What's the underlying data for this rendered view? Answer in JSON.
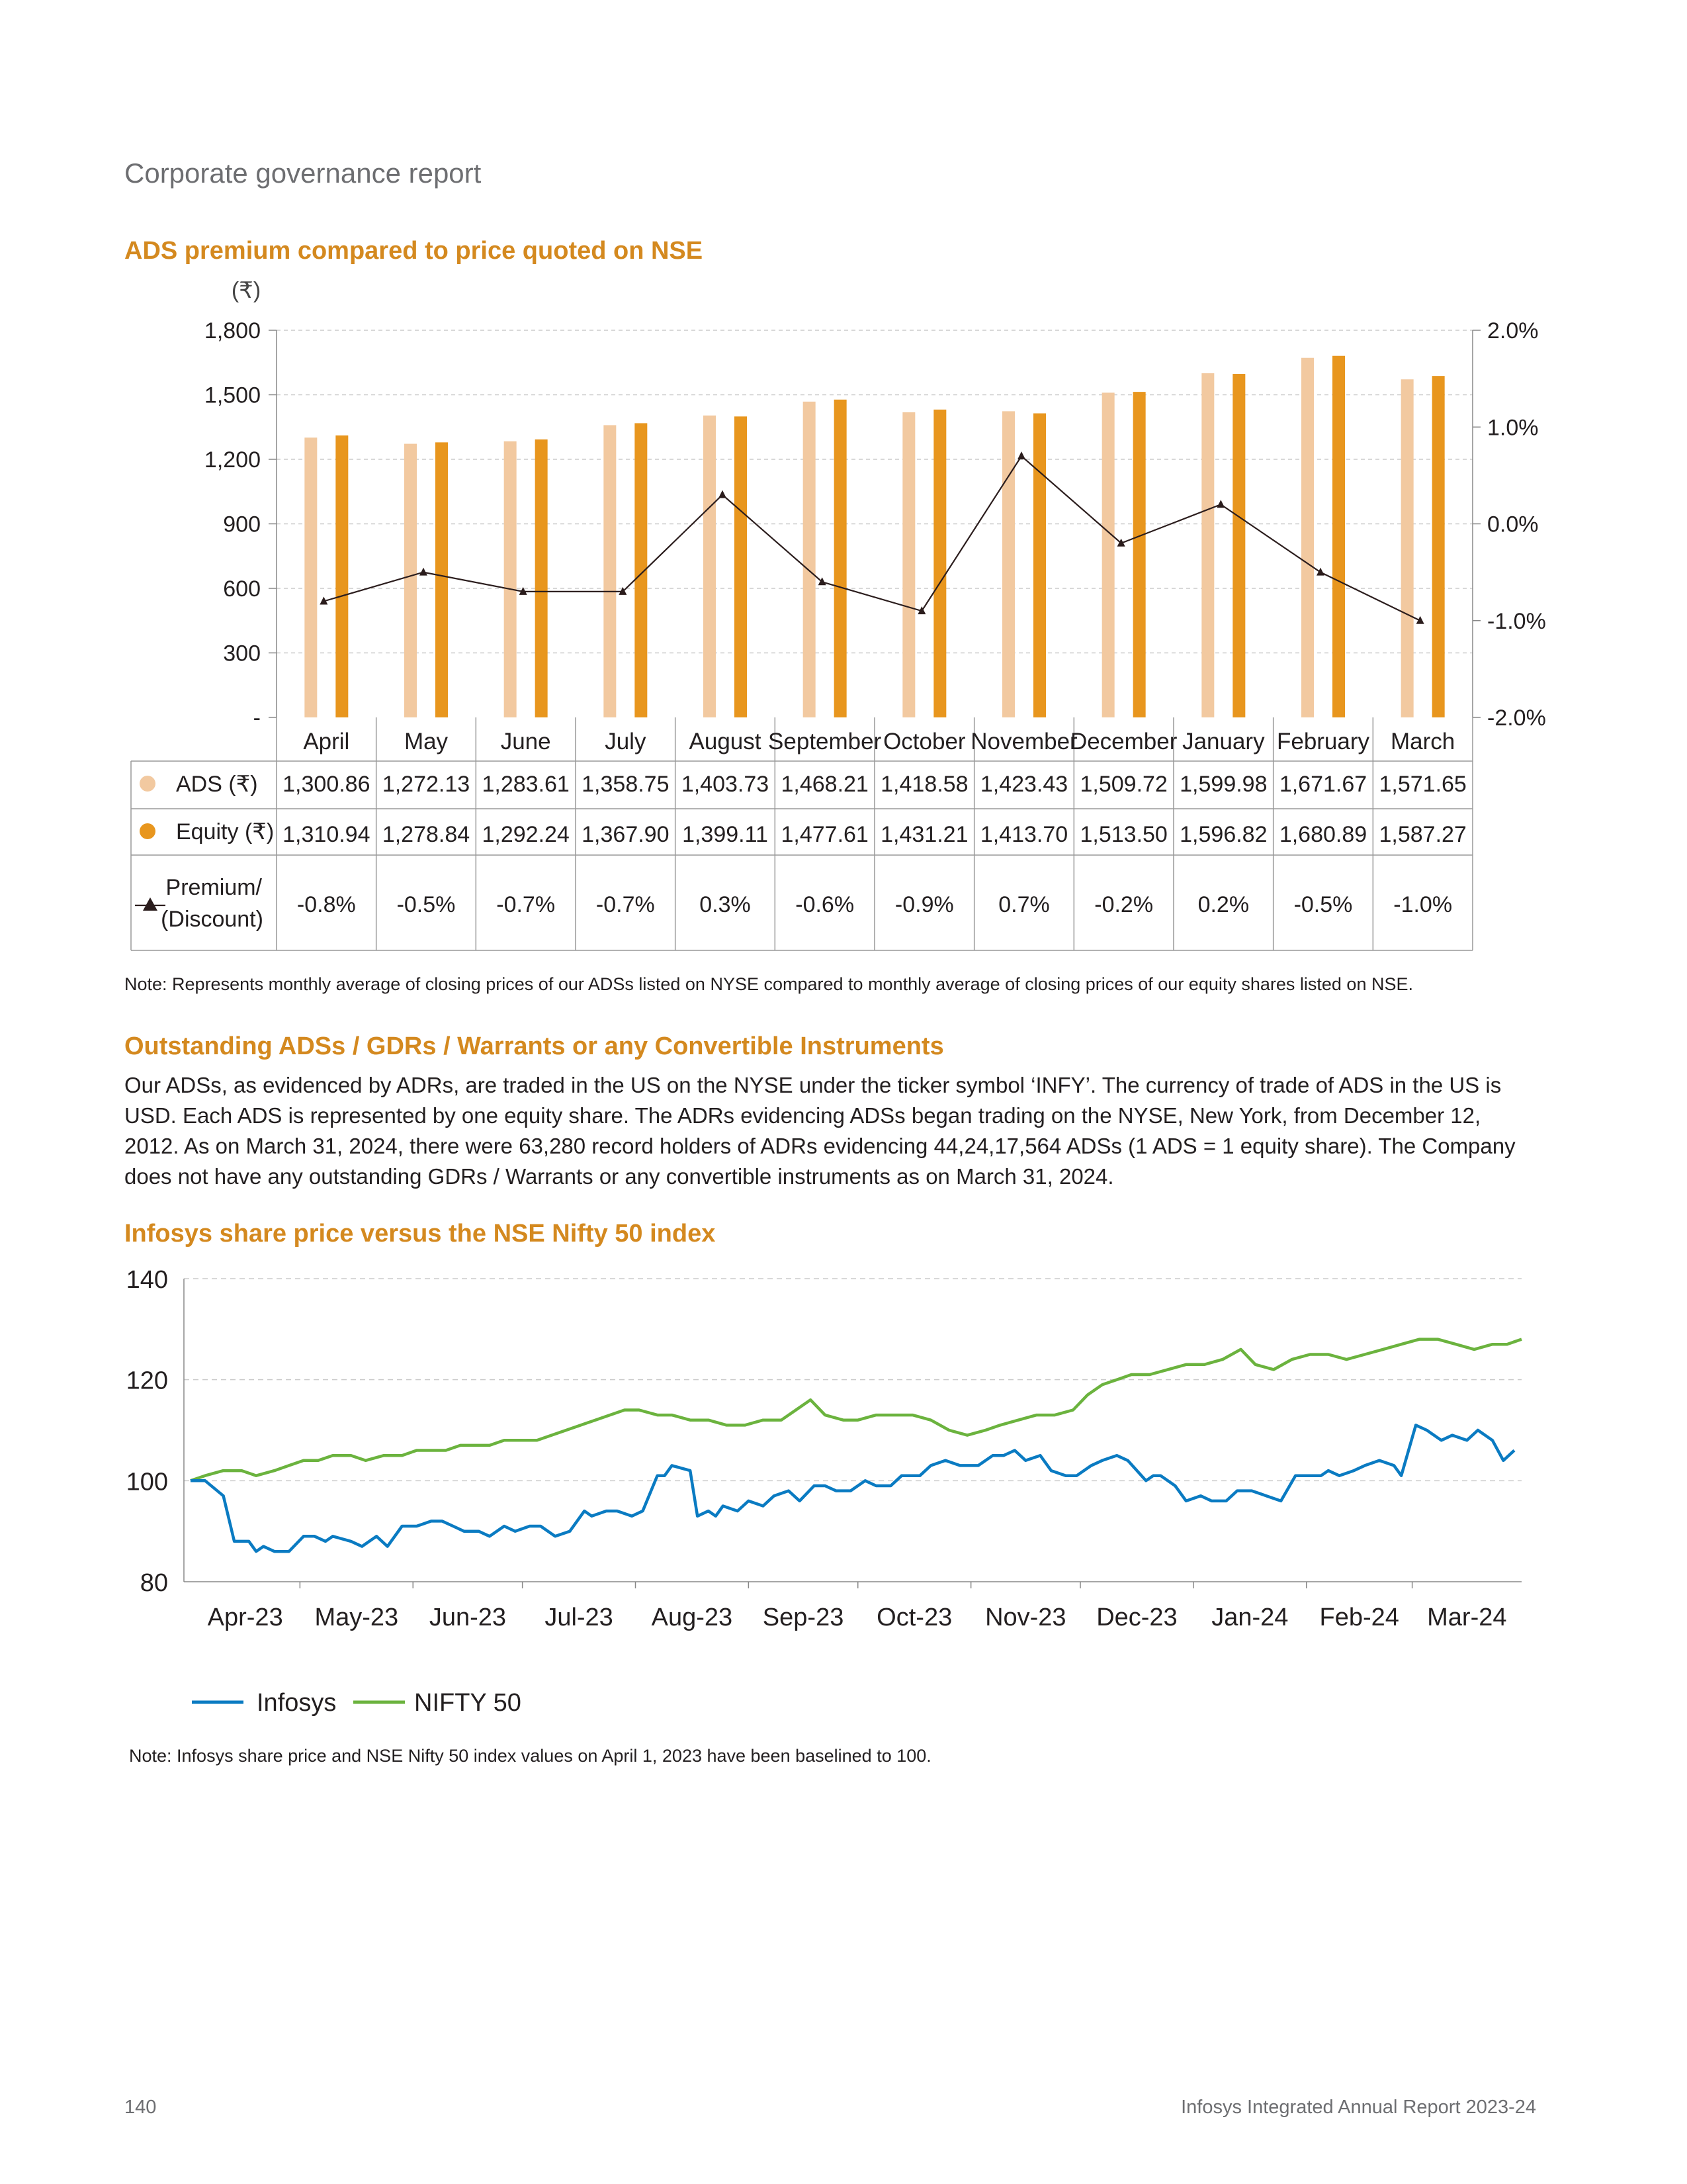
{
  "header": {
    "running_title": "Corporate governance report"
  },
  "chart1": {
    "title": "ADS premium compared to price quoted on NSE",
    "currency_label": "(₹)",
    "note": "Note: Represents monthly average of closing prices of our ADSs listed on NYSE compared to monthly average of closing prices of our equity shares listed on NSE."
  },
  "section2": {
    "title": "Outstanding ADSs / GDRs / Warrants or any Convertible Instruments",
    "body": "Our ADSs, as evidenced by ADRs, are traded in the US on the NYSE under the ticker symbol ‘INFY’. The currency of trade of ADS in the US is USD. Each ADS is represented by one equity share. The ADRs evidencing ADSs began trading on the NYSE, New York, from December 12, 2012. As on March 31, 2024, there were 63,280 record holders of ADRs evidencing 44,24,17,564 ADSs (1 ADS = 1 equity share). The Company does not have any outstanding GDRs / Warrants or any convertible instruments as on March 31, 2024."
  },
  "chart2": {
    "title": "Infosys share price versus the NSE Nifty 50 index",
    "note": "Note: Infosys share price and NSE Nifty 50 index values on April 1, 2023 have been baselined to 100."
  },
  "footer": {
    "page_number": "140",
    "report_name": "Infosys Integrated Annual Report 2023-24"
  },
  "colors": {
    "ads": "#f2c9a0",
    "equity": "#e8961e",
    "premium_line": "#2b1d1d",
    "infosys": "#0a7bc2",
    "nifty": "#6bb33e",
    "title": "#d4891f"
  },
  "chart_data": [
    {
      "type": "bar",
      "categories": [
        "April",
        "May",
        "June",
        "July",
        "August",
        "September",
        "October",
        "November",
        "December",
        "January",
        "February",
        "March"
      ],
      "series": [
        {
          "name": "ADS (₹)",
          "label": "ADS (₹)",
          "values": [
            1300.86,
            1272.13,
            1283.61,
            1358.75,
            1403.73,
            1468.21,
            1418.58,
            1423.43,
            1509.72,
            1599.98,
            1671.67,
            1571.65
          ],
          "labels": [
            "1,300.86",
            "1,272.13",
            "1,283.61",
            "1,358.75",
            "1,403.73",
            "1,468.21",
            "1,418.58",
            "1,423.43",
            "1,509.72",
            "1,599.98",
            "1,671.67",
            "1,571.65"
          ]
        },
        {
          "name": "Equity (₹)",
          "label": "Equity (₹)",
          "values": [
            1310.94,
            1278.84,
            1292.24,
            1367.9,
            1399.11,
            1477.61,
            1431.21,
            1413.7,
            1513.5,
            1596.82,
            1680.89,
            1587.27
          ],
          "labels": [
            "1,310.94",
            "1,278.84",
            "1,292.24",
            "1,367.90",
            "1,399.11",
            "1,477.61",
            "1,431.21",
            "1,413.70",
            "1,513.50",
            "1,596.82",
            "1,680.89",
            "1,587.27"
          ]
        },
        {
          "name": "Premium/ (Discount)",
          "label_lines": [
            "Premium/",
            "(Discount)"
          ],
          "type": "line",
          "axis": "right",
          "values": [
            -0.8,
            -0.5,
            -0.7,
            -0.7,
            0.3,
            -0.6,
            -0.9,
            0.7,
            -0.2,
            0.2,
            -0.5,
            -1.0
          ],
          "labels": [
            "-0.8%",
            "-0.5%",
            "-0.7%",
            "-0.7%",
            "0.3%",
            "-0.6%",
            "-0.9%",
            "0.7%",
            "-0.2%",
            "0.2%",
            "-0.5%",
            "-1.0%"
          ]
        }
      ],
      "y_left": {
        "ylim": [
          0,
          1800
        ],
        "ticks": [
          0,
          300,
          600,
          900,
          1200,
          1500,
          1800
        ],
        "tick_labels": [
          "-",
          "300",
          "600",
          "900",
          "1,200",
          "1,500",
          "1,800"
        ]
      },
      "y_right": {
        "ylim": [
          -2.0,
          2.0
        ],
        "ticks": [
          -2,
          -1,
          0,
          1,
          2
        ],
        "tick_labels": [
          "-2.0%",
          "-1.0%",
          "0.0%",
          "1.0%",
          "2.0%"
        ]
      },
      "grid": true,
      "legend": "table-below"
    },
    {
      "type": "line",
      "x_ticks": [
        "Apr-23",
        "May-23",
        "Jun-23",
        "Jul-23",
        "Aug-23",
        "Sep-23",
        "Oct-23",
        "Nov-23",
        "Dec-23",
        "Jan-24",
        "Feb-24",
        "Mar-24"
      ],
      "x_range": [
        "2023-04-01",
        "2024-03-31"
      ],
      "ylim": [
        80,
        140
      ],
      "y_ticks": [
        80,
        100,
        120,
        140
      ],
      "grid": true,
      "legend": "bottom-left",
      "series": [
        {
          "name": "Infosys",
          "points": [
            [
              "2023-04-01",
              100
            ],
            [
              "2023-04-05",
              100
            ],
            [
              "2023-04-10",
              97
            ],
            [
              "2023-04-13",
              88
            ],
            [
              "2023-04-17",
              88
            ],
            [
              "2023-04-19",
              86
            ],
            [
              "2023-04-21",
              87
            ],
            [
              "2023-04-24",
              86
            ],
            [
              "2023-04-28",
              86
            ],
            [
              "2023-05-02",
              89
            ],
            [
              "2023-05-05",
              89
            ],
            [
              "2023-05-08",
              88
            ],
            [
              "2023-05-10",
              89
            ],
            [
              "2023-05-15",
              88
            ],
            [
              "2023-05-18",
              87
            ],
            [
              "2023-05-22",
              89
            ],
            [
              "2023-05-25",
              87
            ],
            [
              "2023-05-29",
              91
            ],
            [
              "2023-06-02",
              91
            ],
            [
              "2023-06-06",
              92
            ],
            [
              "2023-06-09",
              92
            ],
            [
              "2023-06-12",
              91
            ],
            [
              "2023-06-15",
              90
            ],
            [
              "2023-06-19",
              90
            ],
            [
              "2023-06-22",
              89
            ],
            [
              "2023-06-26",
              91
            ],
            [
              "2023-06-29",
              90
            ],
            [
              "2023-07-03",
              91
            ],
            [
              "2023-07-06",
              91
            ],
            [
              "2023-07-10",
              89
            ],
            [
              "2023-07-14",
              90
            ],
            [
              "2023-07-18",
              94
            ],
            [
              "2023-07-20",
              93
            ],
            [
              "2023-07-24",
              94
            ],
            [
              "2023-07-27",
              94
            ],
            [
              "2023-07-31",
              93
            ],
            [
              "2023-08-03",
              94
            ],
            [
              "2023-08-07",
              101
            ],
            [
              "2023-08-09",
              101
            ],
            [
              "2023-08-11",
              103
            ],
            [
              "2023-08-16",
              102
            ],
            [
              "2023-08-18",
              93
            ],
            [
              "2023-08-21",
              94
            ],
            [
              "2023-08-23",
              93
            ],
            [
              "2023-08-25",
              95
            ],
            [
              "2023-08-29",
              94
            ],
            [
              "2023-09-01",
              96
            ],
            [
              "2023-09-05",
              95
            ],
            [
              "2023-09-08",
              97
            ],
            [
              "2023-09-12",
              98
            ],
            [
              "2023-09-15",
              96
            ],
            [
              "2023-09-19",
              99
            ],
            [
              "2023-09-22",
              99
            ],
            [
              "2023-09-25",
              98
            ],
            [
              "2023-09-29",
              98
            ],
            [
              "2023-10-03",
              100
            ],
            [
              "2023-10-06",
              99
            ],
            [
              "2023-10-10",
              99
            ],
            [
              "2023-10-13",
              101
            ],
            [
              "2023-10-18",
              101
            ],
            [
              "2023-10-21",
              103
            ],
            [
              "2023-10-25",
              104
            ],
            [
              "2023-10-29",
              103
            ],
            [
              "2023-11-01",
              103
            ],
            [
              "2023-11-03",
              103
            ],
            [
              "2023-11-07",
              105
            ],
            [
              "2023-11-10",
              105
            ],
            [
              "2023-11-13",
              106
            ],
            [
              "2023-11-16",
              104
            ],
            [
              "2023-11-20",
              105
            ],
            [
              "2023-11-23",
              102
            ],
            [
              "2023-11-27",
              101
            ],
            [
              "2023-11-30",
              101
            ],
            [
              "2023-12-04",
              103
            ],
            [
              "2023-12-07",
              104
            ],
            [
              "2023-12-11",
              105
            ],
            [
              "2023-12-14",
              104
            ],
            [
              "2023-12-19",
              100
            ],
            [
              "2023-12-21",
              101
            ],
            [
              "2023-12-23",
              101
            ],
            [
              "2023-12-27",
              99
            ],
            [
              "2023-12-30",
              96
            ],
            [
              "2024-01-03",
              97
            ],
            [
              "2024-01-06",
              96
            ],
            [
              "2024-01-10",
              96
            ],
            [
              "2024-01-13",
              98
            ],
            [
              "2024-01-17",
              98
            ],
            [
              "2024-01-21",
              97
            ],
            [
              "2024-01-25",
              96
            ],
            [
              "2024-01-29",
              101
            ],
            [
              "2024-02-01",
              101
            ],
            [
              "2024-02-05",
              101
            ],
            [
              "2024-02-07",
              102
            ],
            [
              "2024-02-10",
              101
            ],
            [
              "2024-02-14",
              102
            ],
            [
              "2024-02-17",
              103
            ],
            [
              "2024-02-21",
              104
            ],
            [
              "2024-02-25",
              103
            ],
            [
              "2024-02-27",
              101
            ],
            [
              "2024-03-02",
              111
            ],
            [
              "2024-03-05",
              110
            ],
            [
              "2024-03-09",
              108
            ],
            [
              "2024-03-12",
              109
            ],
            [
              "2024-03-16",
              108
            ],
            [
              "2024-03-19",
              110
            ],
            [
              "2024-03-23",
              108
            ],
            [
              "2024-03-26",
              104
            ],
            [
              "2024-03-29",
              106
            ]
          ]
        },
        {
          "name": "NIFTY 50",
          "points": [
            [
              "2023-04-01",
              100
            ],
            [
              "2023-04-05",
              101
            ],
            [
              "2023-04-10",
              102
            ],
            [
              "2023-04-15",
              102
            ],
            [
              "2023-04-19",
              101
            ],
            [
              "2023-04-24",
              102
            ],
            [
              "2023-04-28",
              103
            ],
            [
              "2023-05-02",
              104
            ],
            [
              "2023-05-06",
              104
            ],
            [
              "2023-05-10",
              105
            ],
            [
              "2023-05-15",
              105
            ],
            [
              "2023-05-19",
              104
            ],
            [
              "2023-05-24",
              105
            ],
            [
              "2023-05-29",
              105
            ],
            [
              "2023-06-02",
              106
            ],
            [
              "2023-06-06",
              106
            ],
            [
              "2023-06-10",
              106
            ],
            [
              "2023-06-14",
              107
            ],
            [
              "2023-06-18",
              107
            ],
            [
              "2023-06-22",
              107
            ],
            [
              "2023-06-26",
              108
            ],
            [
              "2023-07-01",
              108
            ],
            [
              "2023-07-05",
              108
            ],
            [
              "2023-07-09",
              109
            ],
            [
              "2023-07-13",
              110
            ],
            [
              "2023-07-17",
              111
            ],
            [
              "2023-07-21",
              112
            ],
            [
              "2023-07-25",
              113
            ],
            [
              "2023-07-29",
              114
            ],
            [
              "2023-08-02",
              114
            ],
            [
              "2023-08-07",
              113
            ],
            [
              "2023-08-11",
              113
            ],
            [
              "2023-08-16",
              112
            ],
            [
              "2023-08-21",
              112
            ],
            [
              "2023-08-26",
              111
            ],
            [
              "2023-08-31",
              111
            ],
            [
              "2023-09-05",
              112
            ],
            [
              "2023-09-10",
              112
            ],
            [
              "2023-09-14",
              114
            ],
            [
              "2023-09-18",
              116
            ],
            [
              "2023-09-22",
              113
            ],
            [
              "2023-09-27",
              112
            ],
            [
              "2023-10-01",
              112
            ],
            [
              "2023-10-06",
              113
            ],
            [
              "2023-10-11",
              113
            ],
            [
              "2023-10-16",
              113
            ],
            [
              "2023-10-21",
              112
            ],
            [
              "2023-10-26",
              110
            ],
            [
              "2023-10-31",
              109
            ],
            [
              "2023-11-05",
              110
            ],
            [
              "2023-11-09",
              111
            ],
            [
              "2023-11-14",
              112
            ],
            [
              "2023-11-19",
              113
            ],
            [
              "2023-11-24",
              113
            ],
            [
              "2023-11-29",
              114
            ],
            [
              "2023-12-03",
              117
            ],
            [
              "2023-12-07",
              119
            ],
            [
              "2023-12-11",
              120
            ],
            [
              "2023-12-15",
              121
            ],
            [
              "2023-12-20",
              121
            ],
            [
              "2023-12-25",
              122
            ],
            [
              "2023-12-30",
              123
            ],
            [
              "2024-01-04",
              123
            ],
            [
              "2024-01-09",
              124
            ],
            [
              "2024-01-14",
              126
            ],
            [
              "2024-01-18",
              123
            ],
            [
              "2024-01-23",
              122
            ],
            [
              "2024-01-28",
              124
            ],
            [
              "2024-02-02",
              125
            ],
            [
              "2024-02-07",
              125
            ],
            [
              "2024-02-12",
              124
            ],
            [
              "2024-02-17",
              125
            ],
            [
              "2024-02-22",
              126
            ],
            [
              "2024-02-27",
              127
            ],
            [
              "2024-03-03",
              128
            ],
            [
              "2024-03-08",
              128
            ],
            [
              "2024-03-13",
              127
            ],
            [
              "2024-03-18",
              126
            ],
            [
              "2024-03-23",
              127
            ],
            [
              "2024-03-27",
              127
            ],
            [
              "2024-03-31",
              128
            ]
          ]
        }
      ]
    }
  ]
}
